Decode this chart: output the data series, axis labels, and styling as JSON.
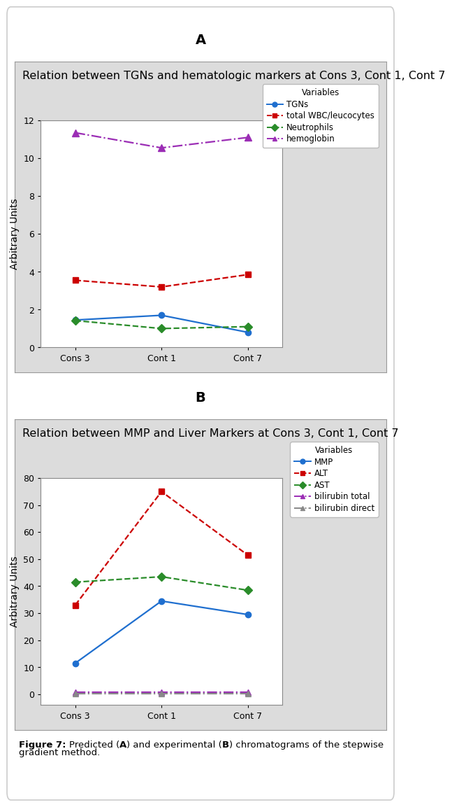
{
  "panel_A": {
    "title": "Relation between TGNs and hematologic markers at Cons 3, Cont 1, Cont 7",
    "xlabel_ticks": [
      "Cons 3",
      "Cont 1",
      "Cont 7"
    ],
    "ylabel": "Arbitrary Units",
    "ylim": [
      0,
      12
    ],
    "yticks": [
      0,
      2,
      4,
      6,
      8,
      10,
      12
    ],
    "series": [
      {
        "label": "TGNs",
        "values": [
          1.45,
          1.7,
          0.8
        ],
        "color": "#1f6fcf",
        "linestyle": "-",
        "marker": "o",
        "markersize": 6
      },
      {
        "label": "total WBC/leucocytes",
        "values": [
          3.55,
          3.2,
          3.85
        ],
        "color": "#cc0000",
        "linestyle": "--",
        "marker": "s",
        "markersize": 6
      },
      {
        "label": "Neutrophils",
        "values": [
          1.42,
          1.0,
          1.1
        ],
        "color": "#2a8c2a",
        "linestyle": "--",
        "marker": "D",
        "markersize": 6
      },
      {
        "label": "hemoglobin",
        "values": [
          11.35,
          10.55,
          11.1
        ],
        "color": "#9b2db5",
        "linestyle": "-.",
        "marker": "^",
        "markersize": 7
      }
    ],
    "legend_title": "Variables",
    "bg_color": "#dcdcdc",
    "plot_bg_color": "#ffffff"
  },
  "panel_B": {
    "title": "Relation between MMP and Liver Markers at Cons 3, Cont 1, Cont 7",
    "xlabel_ticks": [
      "Cons 3",
      "Cont 1",
      "Cont 7"
    ],
    "ylabel": "Arbitrary Units",
    "ylim": [
      -4,
      80
    ],
    "yticks": [
      0,
      10,
      20,
      30,
      40,
      50,
      60,
      70,
      80
    ],
    "series": [
      {
        "label": "MMP",
        "values": [
          11.5,
          34.5,
          29.5
        ],
        "color": "#1f6fcf",
        "linestyle": "-",
        "marker": "o",
        "markersize": 6
      },
      {
        "label": "ALT",
        "values": [
          33.0,
          75.0,
          51.5
        ],
        "color": "#cc0000",
        "linestyle": "--",
        "marker": "s",
        "markersize": 6
      },
      {
        "label": "AST",
        "values": [
          41.5,
          43.5,
          38.5
        ],
        "color": "#2a8c2a",
        "linestyle": "--",
        "marker": "D",
        "markersize": 6
      },
      {
        "label": "bilirubin total",
        "values": [
          0.8,
          0.8,
          0.8
        ],
        "color": "#9b2db5",
        "linestyle": "-.",
        "marker": "^",
        "markersize": 6
      },
      {
        "label": "bilirubin direct",
        "values": [
          0.3,
          0.3,
          0.3
        ],
        "color": "#888888",
        "linestyle": "-.",
        "marker": "^",
        "markersize": 6
      }
    ],
    "legend_title": "Variables",
    "bg_color": "#dcdcdc",
    "plot_bg_color": "#ffffff"
  },
  "label_A": "A",
  "label_B": "B",
  "outer_bg": "#ffffff",
  "outer_border": "#cccccc",
  "title_fontsize": 11.5,
  "tick_fontsize": 9,
  "ylabel_fontsize": 10,
  "legend_fontsize": 8.5,
  "caption_fontsize": 9.5
}
